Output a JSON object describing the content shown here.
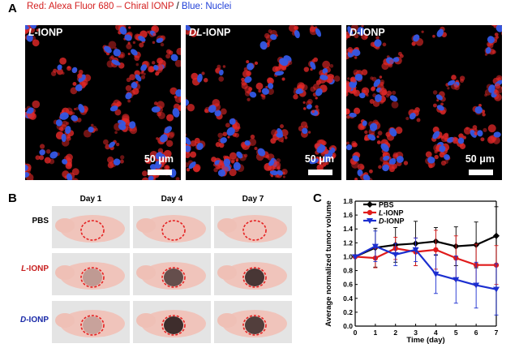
{
  "panel_a": {
    "letter": "A",
    "legend": {
      "red_text": "Red: Alexa Fluor 680 – Chiral IONP",
      "separator": " / ",
      "blue_text": "Blue: Nuclei"
    },
    "images": [
      {
        "prefix": "L",
        "suffix": "-IONP",
        "scale": "50 μm"
      },
      {
        "prefix": "DL",
        "suffix": "-IONP",
        "scale": "50 μm"
      },
      {
        "prefix": "D",
        "suffix": "-IONP",
        "scale": "50 μm"
      }
    ],
    "colors": {
      "cell": "#e02828",
      "nucleus": "#3358e6"
    }
  },
  "panel_b": {
    "letter": "B",
    "days": [
      "Day 1",
      "Day 4",
      "Day 7"
    ],
    "rows": [
      {
        "prefix": "",
        "suffix": "PBS",
        "color": "#000000"
      },
      {
        "prefix": "L",
        "suffix": "-IONP",
        "color": "#c82020"
      },
      {
        "prefix": "D",
        "suffix": "-IONP",
        "color": "#1a2aa8"
      }
    ],
    "tumor_outline_color": "#e52222"
  },
  "panel_c": {
    "letter": "C",
    "chart_data": {
      "type": "line",
      "title": "",
      "xlabel": "Time (day)",
      "ylabel": "Average normalized tumor volume",
      "x": [
        0,
        1,
        2,
        3,
        4,
        5,
        6,
        7
      ],
      "xlim": [
        0,
        7
      ],
      "ylim": [
        0.0,
        1.8
      ],
      "xticks": [
        "0",
        "1",
        "2",
        "3",
        "4",
        "5",
        "6",
        "7"
      ],
      "yticks": [
        "0.0",
        "0.2",
        "0.4",
        "0.6",
        "0.8",
        "1.0",
        "1.2",
        "1.4",
        "1.6",
        "1.8"
      ],
      "legend_position": "top-left",
      "series": [
        {
          "name": "PBS",
          "prefix": "",
          "suffix": "PBS",
          "color": "#000000",
          "marker": "diamond",
          "values": [
            1.0,
            1.13,
            1.17,
            1.19,
            1.22,
            1.15,
            1.17,
            1.3
          ],
          "errors": [
            0.0,
            0.28,
            0.25,
            0.32,
            0.2,
            0.28,
            0.33,
            0.42
          ]
        },
        {
          "name": "L-IONP",
          "prefix": "L",
          "suffix": "-IONP",
          "color": "#e01b1b",
          "marker": "circle",
          "values": [
            1.0,
            0.98,
            1.12,
            1.07,
            1.1,
            0.98,
            0.88,
            0.88
          ],
          "errors": [
            0.0,
            0.14,
            0.16,
            0.2,
            0.28,
            0.32,
            0.3,
            0.28
          ]
        },
        {
          "name": "D-IONP",
          "prefix": "D",
          "suffix": "-IONP",
          "color": "#1c2fd0",
          "marker": "triangle",
          "values": [
            1.0,
            1.15,
            1.03,
            1.1,
            0.75,
            0.67,
            0.59,
            0.53
          ],
          "errors": [
            0.0,
            0.22,
            0.16,
            0.17,
            0.28,
            0.34,
            0.33,
            0.37
          ]
        }
      ]
    }
  }
}
